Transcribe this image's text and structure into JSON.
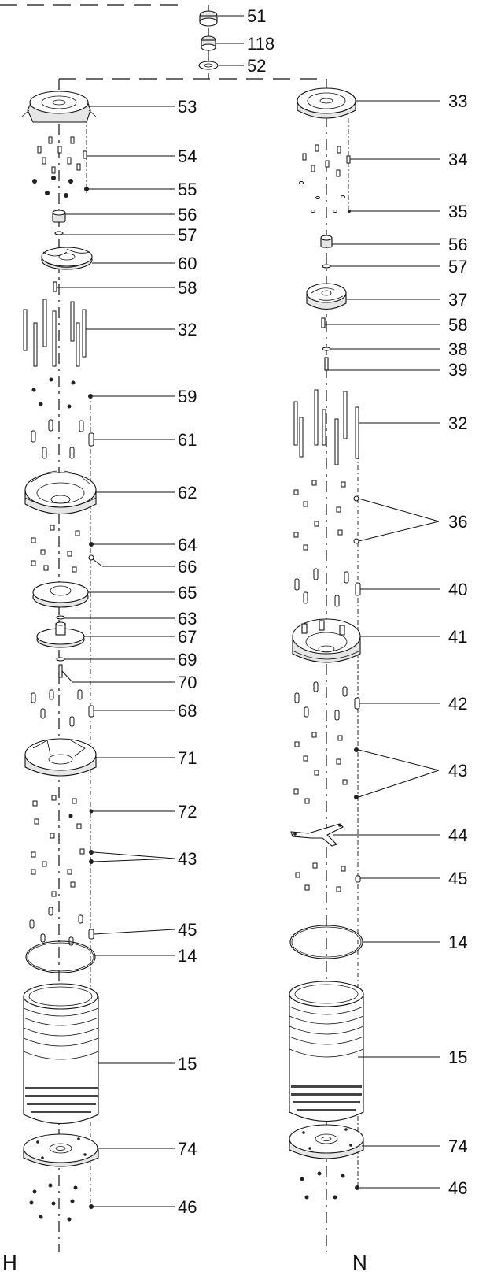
{
  "diagram": {
    "labels": {
      "H": "H",
      "N": "N"
    },
    "callouts_h": [
      "51",
      "118",
      "52",
      "53",
      "54",
      "55",
      "56",
      "57",
      "60",
      "58",
      "32",
      "59",
      "61",
      "62",
      "64",
      "66",
      "65",
      "63",
      "67",
      "69",
      "70",
      "68",
      "71",
      "72",
      "43",
      "45",
      "14",
      "15",
      "74",
      "46"
    ],
    "callouts_n": [
      "33",
      "34",
      "35",
      "56",
      "57",
      "37",
      "58",
      "38",
      "39",
      "32",
      "36",
      "40",
      "41",
      "42",
      "43",
      "44",
      "45",
      "14",
      "15",
      "74",
      "46"
    ]
  }
}
